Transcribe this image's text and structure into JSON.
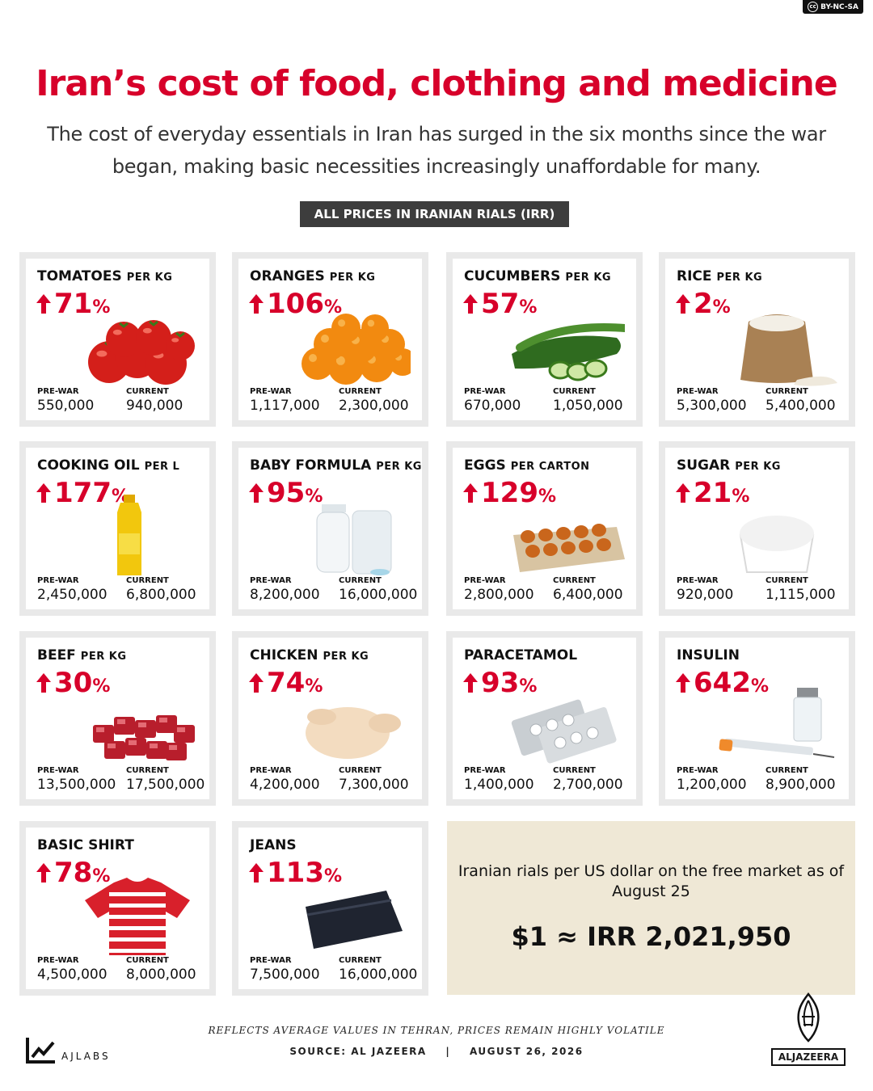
{
  "license": "BY-NC-SA",
  "title": "Iran’s cost of food, clothing and medicine",
  "subtitle": "The cost of everyday essentials in Iran has surged in the six months since the war began, making basic necessities increasingly unaffordable for many.",
  "units_badge": "ALL PRICES IN IRANIAN RIALS (IRR)",
  "labels": {
    "prewar": "PRE-WAR",
    "current": "CURRENT"
  },
  "cards": [
    {
      "name": "TOMATOES",
      "unit": "PER KG",
      "change": "71",
      "prewar": "550,000",
      "current": "940,000",
      "icon": "tomatoes-image"
    },
    {
      "name": "ORANGES",
      "unit": "PER KG",
      "change": "106",
      "prewar": "1,117,000",
      "current": "2,300,000",
      "icon": "oranges-image"
    },
    {
      "name": "CUCUMBERS",
      "unit": "PER KG",
      "change": "57",
      "prewar": "670,000",
      "current": "1,050,000",
      "icon": "cucumbers-image"
    },
    {
      "name": "RICE",
      "unit": "PER KG",
      "change": "2",
      "prewar": "5,300,000",
      "current": "5,400,000",
      "icon": "rice-sack-image"
    },
    {
      "name": "COOKING OIL",
      "unit": "PER L",
      "change": "177",
      "prewar": "2,450,000",
      "current": "6,800,000",
      "icon": "oil-bottle-image"
    },
    {
      "name": "BABY FORMULA",
      "unit": "PER KG",
      "change": "95",
      "prewar": "8,200,000",
      "current": "16,000,000",
      "icon": "baby-formula-image"
    },
    {
      "name": "EGGS",
      "unit": "PER CARTON",
      "change": "129",
      "prewar": "2,800,000",
      "current": "6,400,000",
      "icon": "egg-carton-image"
    },
    {
      "name": "SUGAR",
      "unit": "PER KG",
      "change": "21",
      "prewar": "920,000",
      "current": "1,115,000",
      "icon": "sugar-bowl-image"
    },
    {
      "name": "BEEF",
      "unit": "PER KG",
      "change": "30",
      "prewar": "13,500,000",
      "current": "17,500,000",
      "icon": "beef-cubes-image"
    },
    {
      "name": "CHICKEN",
      "unit": "PER KG",
      "change": "74",
      "prewar": "4,200,000",
      "current": "7,300,000",
      "icon": "raw-chicken-image"
    },
    {
      "name": "PARACETAMOL",
      "unit": "",
      "change": "93",
      "prewar": "1,400,000",
      "current": "2,700,000",
      "icon": "pill-blister-image"
    },
    {
      "name": "INSULIN",
      "unit": "",
      "change": "642",
      "prewar": "1,200,000",
      "current": "8,900,000",
      "icon": "insulin-syringe-image"
    },
    {
      "name": "BASIC SHIRT",
      "unit": "",
      "change": "78",
      "prewar": "4,500,000",
      "current": "8,000,000",
      "icon": "striped-shirt-image"
    },
    {
      "name": "JEANS",
      "unit": "",
      "change": "113",
      "prewar": "7,500,000",
      "current": "16,000,000",
      "icon": "folded-jeans-image"
    }
  ],
  "fx": {
    "description": "Iranian rials per US dollar on the free market as of August 25",
    "value": "$1 ≈ IRR 2,021,950"
  },
  "footer": {
    "note": "REFLECTS AVERAGE VALUES IN TEHRAN, PRICES REMAIN HIGHLY VOLATILE",
    "source": "SOURCE: AL JAZEERA",
    "separator": "|",
    "date": "AUGUST 26, 2026",
    "ajlabs": "AJLABS",
    "aljazeera": "ALJAZEERA"
  },
  "colors": {
    "accent": "#d7002a",
    "card_border": "#e9e9e9",
    "fx_background": "#efe8d6",
    "badge": "#3d3d3d"
  }
}
